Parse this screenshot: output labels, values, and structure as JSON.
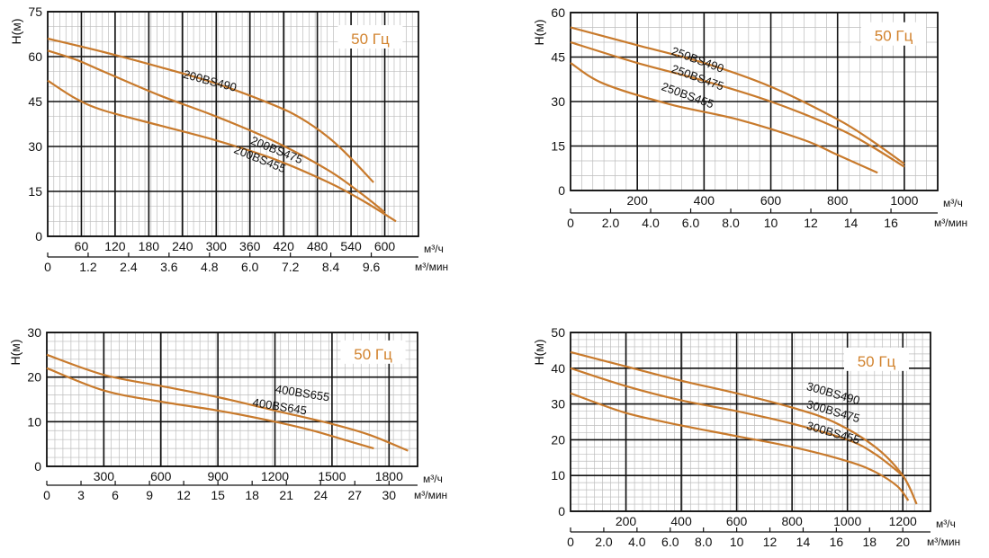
{
  "colors": {
    "curve": "#C87A2C",
    "freq": "#D2832E",
    "major_grid": "#111111",
    "minor_grid": "#bdbdbd"
  },
  "chart_data": [
    {
      "type": "line",
      "freq_label": "50 Гц",
      "ylabel": "H(м)",
      "x_unit_label": "м³/ч",
      "x2_unit_label": "м³/мин",
      "xlim": [
        0,
        660
      ],
      "ylim": [
        0,
        75
      ],
      "x_ticks": [
        60,
        120,
        180,
        240,
        300,
        360,
        420,
        480,
        540,
        600
      ],
      "x_tick_labels": [
        "60",
        "120",
        "180",
        "240",
        "300",
        "360",
        "420",
        "480",
        "540",
        "600"
      ],
      "y_ticks": [
        0,
        15,
        30,
        45,
        60,
        75
      ],
      "y_tick_labels": [
        "0",
        "15",
        "30",
        "45",
        "60",
        "75"
      ],
      "x2_ticks": [
        0,
        72,
        144,
        216,
        288,
        360,
        432,
        504,
        576
      ],
      "x2_tick_labels": [
        "0",
        "1.2",
        "2.4",
        "3.6",
        "4.8",
        "6.0",
        "7.2",
        "8.4",
        "9.6"
      ],
      "series": [
        {
          "name": "200BS490",
          "x": [
            0,
            100,
            200,
            300,
            400,
            450,
            500,
            540,
            580
          ],
          "y": [
            66,
            61.5,
            56.5,
            51,
            44,
            39.5,
            33,
            26,
            18
          ]
        },
        {
          "name": "200BS475",
          "x": [
            0,
            50,
            100,
            200,
            300,
            400,
            500,
            560,
            600
          ],
          "y": [
            62,
            59,
            55,
            47,
            40,
            32,
            22,
            14,
            8
          ]
        },
        {
          "name": "200BS455",
          "x": [
            0,
            50,
            100,
            200,
            300,
            400,
            500,
            560,
            620
          ],
          "y": [
            52,
            46,
            42,
            37,
            32,
            26,
            18,
            12,
            5
          ]
        }
      ]
    },
    {
      "type": "line",
      "freq_label": "50 Гц",
      "ylabel": "H(м)",
      "x_unit_label": "м³/ч",
      "x2_unit_label": "м³/мин",
      "xlim": [
        0,
        1100
      ],
      "ylim": [
        0,
        60
      ],
      "x_ticks": [
        200,
        400,
        600,
        800,
        1000
      ],
      "x_tick_labels": [
        "200",
        "400",
        "600",
        "800",
        "1000"
      ],
      "y_ticks": [
        0,
        15,
        30,
        45,
        60
      ],
      "y_tick_labels": [
        "0",
        "15",
        "30",
        "45",
        "60"
      ],
      "x2_ticks": [
        0,
        120,
        240,
        360,
        480,
        600,
        720,
        840,
        960
      ],
      "x2_tick_labels": [
        "0",
        "2.0",
        "4.0",
        "6.0",
        "8.0",
        "10",
        "12",
        "14",
        "16"
      ],
      "series": [
        {
          "name": "250BS490",
          "x": [
            0,
            200,
            400,
            600,
            800,
            900,
            1000
          ],
          "y": [
            55,
            49,
            43,
            35,
            24,
            17,
            9
          ]
        },
        {
          "name": "250BS475",
          "x": [
            0,
            200,
            400,
            600,
            800,
            900,
            1000
          ],
          "y": [
            50,
            43,
            37,
            30,
            21,
            15,
            8
          ]
        },
        {
          "name": "250BS455",
          "x": [
            0,
            100,
            300,
            500,
            700,
            800,
            920
          ],
          "y": [
            43,
            36,
            29,
            24,
            17,
            12,
            6
          ]
        }
      ]
    },
    {
      "type": "line",
      "freq_label": "50 Гц",
      "ylabel": "H(м)",
      "x_unit_label": "м³/ч",
      "x2_unit_label": "м³/мин",
      "xlim": [
        0,
        1950
      ],
      "ylim": [
        0,
        30
      ],
      "x_ticks": [
        300,
        600,
        900,
        1200,
        1500,
        1800
      ],
      "x_tick_labels": [
        "300",
        "600",
        "900",
        "1200",
        "1500",
        "1800"
      ],
      "y_ticks": [
        0,
        10,
        20,
        30
      ],
      "y_tick_labels": [
        "0",
        "10",
        "20",
        "30"
      ],
      "x2_ticks": [
        0,
        180,
        360,
        540,
        720,
        900,
        1080,
        1260,
        1440,
        1620,
        1800
      ],
      "x2_tick_labels": [
        "0",
        "3",
        "6",
        "9",
        "12",
        "15",
        "18",
        "21",
        "24",
        "27",
        "30"
      ],
      "series": [
        {
          "name": "400BS655",
          "x": [
            0,
            300,
            600,
            900,
            1200,
            1500,
            1700,
            1900
          ],
          "y": [
            25,
            20.5,
            18,
            15.5,
            12.5,
            9.5,
            7,
            3.5
          ]
        },
        {
          "name": "400BS645",
          "x": [
            0,
            300,
            600,
            900,
            1200,
            1400,
            1600,
            1720
          ],
          "y": [
            22,
            17,
            14.5,
            12.5,
            10,
            8,
            5.5,
            4
          ]
        }
      ]
    },
    {
      "type": "line",
      "freq_label": "50 Гц",
      "ylabel": "H(м)",
      "x_unit_label": "м³/ч",
      "x2_unit_label": "м³/мин",
      "xlim": [
        0,
        1300
      ],
      "ylim": [
        0,
        50
      ],
      "x_ticks": [
        200,
        400,
        600,
        800,
        1000,
        1200
      ],
      "x_tick_labels": [
        "200",
        "400",
        "600",
        "800",
        "1000",
        "1200"
      ],
      "y_ticks": [
        0,
        10,
        20,
        30,
        40,
        50
      ],
      "y_tick_labels": [
        "0",
        "10",
        "20",
        "30",
        "40",
        "50"
      ],
      "x2_ticks": [
        0,
        120,
        240,
        360,
        480,
        600,
        720,
        840,
        960,
        1080,
        1200
      ],
      "x2_tick_labels": [
        "0",
        "2.0",
        "4.0",
        "6.0",
        "8.0",
        "10",
        "12",
        "14",
        "16",
        "18",
        "20"
      ],
      "series": [
        {
          "name": "300BS490",
          "x": [
            0,
            200,
            400,
            600,
            800,
            950,
            1100,
            1200,
            1250
          ],
          "y": [
            44.5,
            40.5,
            36.5,
            33,
            29,
            25,
            18,
            10,
            2
          ]
        },
        {
          "name": "300BS475",
          "x": [
            0,
            200,
            400,
            600,
            800,
            1000,
            1100,
            1200
          ],
          "y": [
            40,
            35,
            31,
            28,
            24.5,
            20,
            16,
            10
          ]
        },
        {
          "name": "300BS455",
          "x": [
            0,
            200,
            400,
            600,
            800,
            1000,
            1100,
            1180,
            1220
          ],
          "y": [
            33,
            27.5,
            24,
            21,
            18,
            14,
            11,
            7,
            3
          ]
        }
      ]
    }
  ]
}
